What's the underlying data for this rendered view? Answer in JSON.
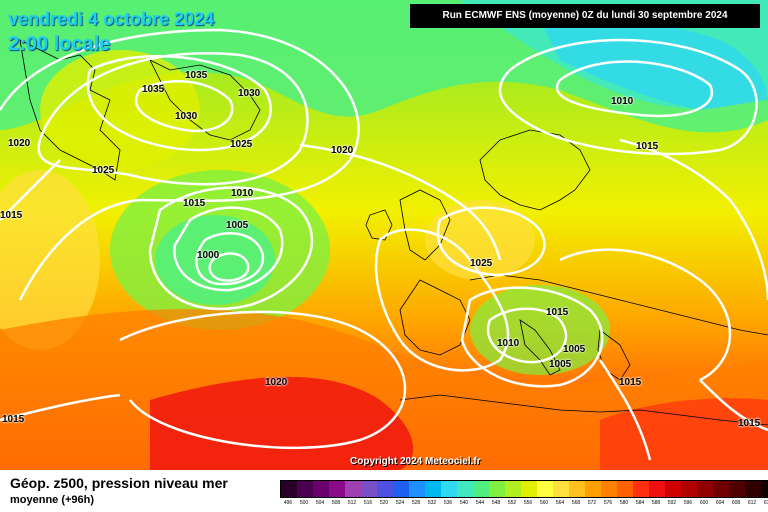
{
  "header": {
    "date_title": "vendredi 4 octobre 2024",
    "time_title": "2:00 locale",
    "run_info": "Run ECMWF ENS (moyenne) 0Z du lundi 30 septembre 2024"
  },
  "copyright": "Copyright 2024 Meteociel.fr",
  "isobars": {
    "l1035a": "1035",
    "l1035b": "1035",
    "l1030a": "1030",
    "l1030b": "1030",
    "l1025a": "1025",
    "l1025b": "1025",
    "l1020a": "1020",
    "l1015a": "1015",
    "l1010a": "1010",
    "l1005a": "1005",
    "l1000": "1000",
    "l1020b": "1020",
    "l1015b": "1015",
    "l1020c": "1020",
    "l1010b": "1010",
    "l1015c": "1015",
    "l1025c": "1025",
    "l1015d": "1015",
    "l1010c": "1010",
    "l1005b": "1005",
    "l1005c": "1005",
    "l1015e": "1015",
    "l1015f": "1015",
    "l1015g": "1015"
  },
  "footer": {
    "title": "Géop. z500, pression niveau mer",
    "subtitle": "moyenne  (+96h)"
  },
  "legend": {
    "labels": [
      "496",
      "500",
      "504",
      "508",
      "512",
      "516",
      "520",
      "524",
      "528",
      "532",
      "536",
      "540",
      "544",
      "548",
      "552",
      "556",
      "560",
      "564",
      "568",
      "572",
      "576",
      "580",
      "584",
      "588",
      "592",
      "596",
      "600",
      "604",
      "608",
      "612",
      "616"
    ],
    "colors": [
      "#2a002a",
      "#4b0050",
      "#6a006e",
      "#8a0a8a",
      "#a040b0",
      "#7a50c8",
      "#5050e0",
      "#2060f0",
      "#1e90ff",
      "#00b8f0",
      "#30d8f0",
      "#40e8c0",
      "#50f080",
      "#80f040",
      "#b0f020",
      "#e0f000",
      "#ffff40",
      "#ffe040",
      "#ffc020",
      "#ffa000",
      "#ff8000",
      "#ff6000",
      "#ff3010",
      "#f01010",
      "#d00000",
      "#b00000",
      "#900000",
      "#700000",
      "#500000",
      "#300000",
      "#100000"
    ]
  }
}
